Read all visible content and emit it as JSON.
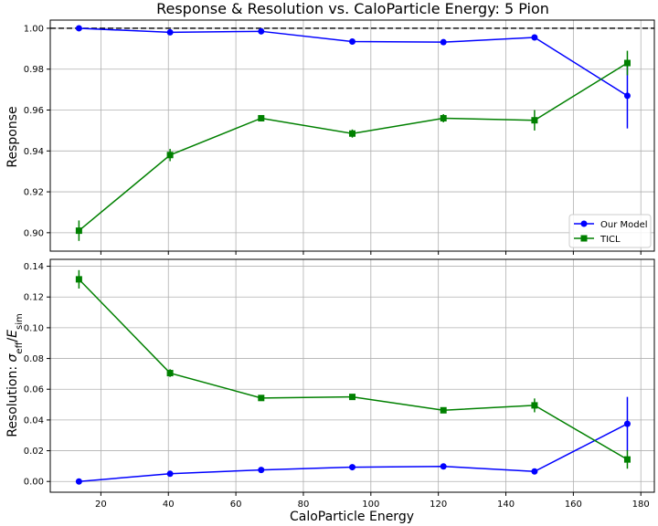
{
  "chart_data": [
    {
      "type": "line",
      "title": "Response & Resolution vs. CaloParticle Energy: 5 Pion",
      "xlabel": "",
      "ylabel": "Response",
      "xlim": [
        5,
        184
      ],
      "ylim": [
        0.891,
        1.004
      ],
      "xticks": [
        "20",
        "40",
        "60",
        "80",
        "100",
        "120",
        "140",
        "160",
        "180"
      ],
      "yticks": [
        "0.90",
        "0.92",
        "0.94",
        "0.96",
        "0.98",
        "1.00"
      ],
      "grid": true,
      "reference_line": 1.0,
      "legend_position": "lower-right",
      "x": [
        13.5,
        40.5,
        67.5,
        94.5,
        121.5,
        148.5,
        176
      ],
      "series": [
        {
          "name": "Our Model",
          "color": "#0000ff",
          "marker": "circle",
          "values": [
            1.0,
            0.998,
            0.9985,
            0.9935,
            0.9932,
            0.9955,
            0.967
          ],
          "errors": [
            0.0003,
            0.0006,
            0.0007,
            0.0006,
            0.0006,
            0.0008,
            0.016
          ]
        },
        {
          "name": "TICL",
          "color": "#008000",
          "marker": "square",
          "values": [
            0.901,
            0.938,
            0.956,
            0.9485,
            0.956,
            0.955,
            0.983
          ],
          "errors": [
            0.005,
            0.003,
            0.0015,
            0.002,
            0.002,
            0.005,
            0.006
          ]
        }
      ]
    },
    {
      "type": "line",
      "title": "",
      "xlabel": "CaloParticle Energy",
      "ylabel_prefix": "Resolution: ",
      "ylabel_sigma": "σ",
      "ylabel_sub1": "eff",
      "ylabel_slash": "/",
      "ylabel_E": "E",
      "ylabel_sub2": "sim",
      "xlim": [
        5,
        184
      ],
      "ylim": [
        -0.007,
        0.1445
      ],
      "xticks": [
        "20",
        "40",
        "60",
        "80",
        "100",
        "120",
        "140",
        "160",
        "180"
      ],
      "yticks": [
        "0.00",
        "0.02",
        "0.04",
        "0.06",
        "0.08",
        "0.10",
        "0.12",
        "0.14"
      ],
      "grid": true,
      "x": [
        13.5,
        40.5,
        67.5,
        94.5,
        121.5,
        148.5,
        176
      ],
      "series": [
        {
          "name": "Our Model",
          "color": "#0000ff",
          "marker": "circle",
          "values": [
            0.0,
            0.005,
            0.0075,
            0.0093,
            0.0098,
            0.0065,
            0.0375
          ],
          "errors": [
            0.0004,
            0.0006,
            0.0006,
            0.0006,
            0.0006,
            0.0006,
            0.0175
          ]
        },
        {
          "name": "TICL",
          "color": "#008000",
          "marker": "square",
          "values": [
            0.1315,
            0.0705,
            0.0543,
            0.055,
            0.0463,
            0.0495,
            0.0143
          ],
          "errors": [
            0.006,
            0.0025,
            0.0015,
            0.0012,
            0.0012,
            0.0045,
            0.006
          ]
        }
      ]
    }
  ]
}
